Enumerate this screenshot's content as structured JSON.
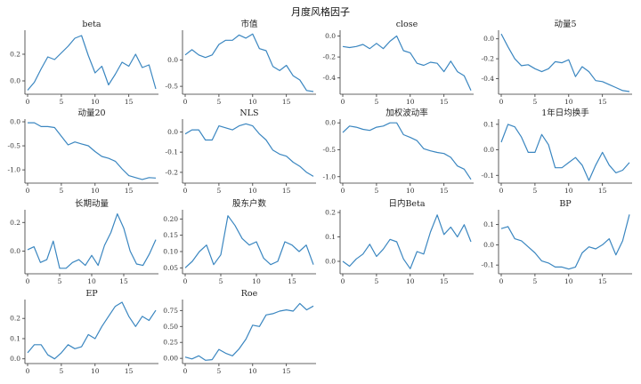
{
  "figure": {
    "title": "月度风格因子",
    "line_color": "#3a86c0",
    "grid": false,
    "layout": "4 columns x 4 rows"
  },
  "chart_data": [
    {
      "type": "line",
      "title": "beta",
      "x_ticks": [
        0,
        5,
        10,
        15
      ],
      "y_ticks": [
        "0.0",
        "0.2"
      ],
      "ylim": [
        -0.08,
        0.36
      ],
      "values": [
        -0.07,
        -0.01,
        0.09,
        0.18,
        0.16,
        0.21,
        0.26,
        0.32,
        0.34,
        0.19,
        0.06,
        0.11,
        -0.03,
        0.05,
        0.14,
        0.11,
        0.2,
        0.1,
        0.12,
        -0.06
      ]
    },
    {
      "type": "line",
      "title": "市值",
      "x_ticks": [
        0,
        5,
        10,
        15
      ],
      "y_ticks": [
        "0.0",
        "-0.5"
      ],
      "ylim": [
        -0.6,
        0.52
      ],
      "values": [
        0.1,
        0.2,
        0.1,
        0.05,
        0.1,
        0.3,
        0.38,
        0.38,
        0.48,
        0.42,
        0.5,
        0.22,
        0.18,
        -0.12,
        -0.2,
        -0.1,
        -0.3,
        -0.38,
        -0.58,
        -0.6
      ]
    },
    {
      "type": "line",
      "title": "close",
      "x_ticks": [
        0,
        5,
        10,
        15
      ],
      "y_ticks": [
        "0.0",
        "-0.2",
        "-0.4"
      ],
      "ylim": [
        -0.53,
        0.03
      ],
      "values": [
        -0.1,
        -0.11,
        -0.1,
        -0.08,
        -0.12,
        -0.07,
        -0.12,
        -0.05,
        0.0,
        -0.14,
        -0.16,
        -0.26,
        -0.28,
        -0.25,
        -0.26,
        -0.34,
        -0.24,
        -0.34,
        -0.38,
        -0.52
      ]
    },
    {
      "type": "line",
      "title": "动量5",
      "x_ticks": [
        0,
        5,
        10,
        15
      ],
      "y_ticks": [
        "0.0",
        "-0.2",
        "-0.4"
      ],
      "ylim": [
        -0.53,
        0.06
      ],
      "values": [
        0.05,
        -0.08,
        -0.2,
        -0.27,
        -0.26,
        -0.3,
        -0.33,
        -0.3,
        -0.23,
        -0.24,
        -0.21,
        -0.38,
        -0.28,
        -0.33,
        -0.42,
        -0.43,
        -0.46,
        -0.49,
        -0.52,
        -0.53
      ]
    },
    {
      "type": "line",
      "title": "动量20",
      "x_ticks": [
        0,
        5,
        10,
        15
      ],
      "y_ticks": [
        "0.0",
        "-0.5",
        "-1.0"
      ],
      "ylim": [
        -1.22,
        0.0
      ],
      "values": [
        -0.02,
        -0.02,
        -0.1,
        -0.1,
        -0.12,
        -0.3,
        -0.48,
        -0.42,
        -0.46,
        -0.5,
        -0.62,
        -0.72,
        -0.76,
        -0.82,
        -0.98,
        -1.12,
        -1.16,
        -1.2,
        -1.16,
        -1.17
      ]
    },
    {
      "type": "line",
      "title": "NLS",
      "x_ticks": [
        0,
        5,
        10,
        15
      ],
      "y_ticks": [
        "0.0",
        "-0.1",
        "-0.2"
      ],
      "ylim": [
        -0.24,
        0.05
      ],
      "values": [
        -0.01,
        0.01,
        0.01,
        -0.04,
        -0.04,
        0.03,
        0.02,
        0.01,
        0.03,
        0.04,
        0.03,
        -0.01,
        -0.04,
        -0.09,
        -0.11,
        -0.12,
        -0.15,
        -0.17,
        -0.2,
        -0.22
      ]
    },
    {
      "type": "line",
      "title": "加权波动率",
      "x_ticks": [
        0,
        5,
        10,
        15
      ],
      "y_ticks": [
        "0.0",
        "-0.5",
        "-1.0"
      ],
      "ylim": [
        -1.07,
        0.02
      ],
      "values": [
        -0.18,
        -0.06,
        -0.08,
        -0.12,
        -0.14,
        -0.08,
        -0.06,
        0.0,
        0.0,
        -0.22,
        -0.27,
        -0.33,
        -0.48,
        -0.52,
        -0.55,
        -0.57,
        -0.64,
        -0.8,
        -0.86,
        -1.05
      ]
    },
    {
      "type": "line",
      "title": "1年日均换手",
      "x_ticks": [
        0,
        5,
        10,
        15
      ],
      "y_ticks": [
        "0.1",
        "0.0",
        "-0.1"
      ],
      "ylim": [
        -0.12,
        0.11
      ],
      "values": [
        0.03,
        0.1,
        0.09,
        0.05,
        -0.01,
        -0.01,
        0.06,
        0.02,
        -0.07,
        -0.07,
        -0.05,
        -0.03,
        -0.06,
        -0.12,
        -0.06,
        -0.01,
        -0.06,
        -0.09,
        -0.08,
        -0.05
      ]
    },
    {
      "type": "line",
      "title": "长期动量",
      "x_ticks": [
        0,
        5,
        10,
        15
      ],
      "y_ticks": [
        "0.2",
        "0.0"
      ],
      "ylim": [
        -0.14,
        0.27
      ],
      "values": [
        0.01,
        0.03,
        -0.08,
        -0.06,
        0.07,
        -0.12,
        -0.12,
        -0.08,
        -0.06,
        -0.1,
        -0.03,
        -0.1,
        0.04,
        0.13,
        0.26,
        0.16,
        0.0,
        -0.09,
        -0.1,
        -0.02,
        0.08
      ]
    },
    {
      "type": "line",
      "title": "股东户数",
      "x_ticks": [
        0,
        5,
        10,
        15
      ],
      "y_ticks": [
        "0.20",
        "0.15",
        "0.10",
        "0.05"
      ],
      "ylim": [
        0.04,
        0.22
      ],
      "values": [
        0.05,
        0.07,
        0.1,
        0.12,
        0.06,
        0.09,
        0.21,
        0.18,
        0.14,
        0.12,
        0.13,
        0.08,
        0.06,
        0.07,
        0.13,
        0.12,
        0.1,
        0.12,
        0.06
      ]
    },
    {
      "type": "line",
      "title": "日内Beta",
      "x_ticks": [
        0,
        5,
        10,
        15
      ],
      "y_ticks": [
        "0.2",
        "0.1",
        "0.0"
      ],
      "ylim": [
        -0.04,
        0.2
      ],
      "values": [
        0.0,
        -0.02,
        0.01,
        0.03,
        0.07,
        0.02,
        0.05,
        0.09,
        0.08,
        0.01,
        -0.03,
        0.04,
        0.03,
        0.12,
        0.19,
        0.11,
        0.14,
        0.1,
        0.15,
        0.08
      ]
    },
    {
      "type": "line",
      "title": "BP",
      "x_ticks": [
        0,
        5,
        10,
        15
      ],
      "y_ticks": [
        "0.1",
        "0.0",
        "-0.1"
      ],
      "ylim": [
        -0.13,
        0.16
      ],
      "values": [
        0.08,
        0.09,
        0.03,
        0.02,
        -0.01,
        -0.04,
        -0.08,
        -0.09,
        -0.11,
        -0.11,
        -0.12,
        -0.11,
        -0.04,
        -0.01,
        -0.02,
        0.0,
        0.03,
        -0.05,
        0.02,
        0.15
      ]
    },
    {
      "type": "line",
      "title": "EP",
      "x_ticks": [
        0,
        5,
        10,
        15
      ],
      "y_ticks": [
        "0.2",
        "0.1",
        "0.0"
      ],
      "ylim": [
        -0.01,
        0.28
      ],
      "values": [
        0.03,
        0.07,
        0.07,
        0.02,
        0.0,
        0.03,
        0.07,
        0.05,
        0.06,
        0.12,
        0.1,
        0.16,
        0.21,
        0.26,
        0.28,
        0.21,
        0.16,
        0.21,
        0.19,
        0.24
      ]
    },
    {
      "type": "line",
      "title": "Roe",
      "x_ticks": [
        0,
        5,
        10,
        15
      ],
      "y_ticks": [
        "0.75",
        "0.50",
        "0.25",
        "0.00"
      ],
      "ylim": [
        -0.04,
        0.88
      ],
      "values": [
        0.02,
        -0.01,
        0.04,
        -0.03,
        -0.02,
        0.14,
        0.08,
        0.04,
        0.15,
        0.3,
        0.52,
        0.5,
        0.68,
        0.7,
        0.74,
        0.76,
        0.74,
        0.86,
        0.76,
        0.82
      ]
    }
  ]
}
